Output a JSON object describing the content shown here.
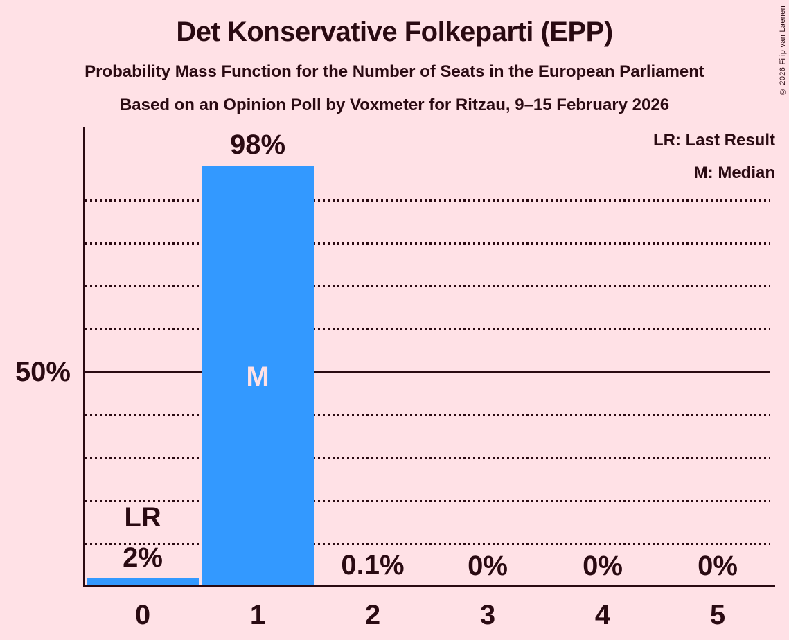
{
  "chart_data": {
    "type": "bar",
    "title": "Det Konservative Folkeparti (EPP)",
    "subtitles": [
      "Probability Mass Function for the Number of Seats in the European Parliament",
      "Based on an Opinion Poll by Voxmeter for Ritzau, 9–15 February 2026"
    ],
    "copyright": "© 2026 Filip van Laenen",
    "legend": [
      {
        "label": "LR: Last Result"
      },
      {
        "label": "M: Median"
      }
    ],
    "legend_position": "top-right",
    "categories": [
      "0",
      "1",
      "2",
      "3",
      "4",
      "5"
    ],
    "values": [
      2,
      98,
      0.1,
      0,
      0,
      0
    ],
    "value_labels": [
      "2%",
      "98%",
      "0.1%",
      "0%",
      "0%",
      "0%"
    ],
    "annotations": [
      {
        "category": "0",
        "label": "LR"
      },
      {
        "category": "1",
        "label": "M"
      }
    ],
    "y_axis": {
      "tick_label": "50%",
      "tick_value": 50,
      "ylim": [
        0,
        107
      ],
      "gridlines_dotted": [
        10,
        20,
        30,
        40,
        60,
        70,
        80,
        90
      ],
      "gridline_solid": 50,
      "grid": true
    },
    "colors": {
      "background": "#FFE1E6",
      "bar": "#3399FF",
      "text": "#2A0A12",
      "median_annotation": "#FFE1E6"
    }
  }
}
